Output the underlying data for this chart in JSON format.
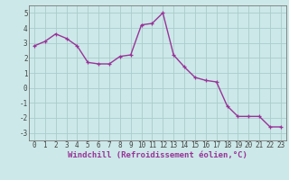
{
  "x": [
    0,
    1,
    2,
    3,
    4,
    5,
    6,
    7,
    8,
    9,
    10,
    11,
    12,
    13,
    14,
    15,
    16,
    17,
    18,
    19,
    20,
    21,
    22,
    23
  ],
  "y": [
    2.8,
    3.1,
    3.6,
    3.3,
    2.8,
    1.7,
    1.6,
    1.6,
    2.1,
    2.2,
    4.2,
    4.3,
    5.0,
    2.2,
    1.4,
    0.7,
    0.5,
    0.4,
    -1.2,
    -1.9,
    -1.9,
    -1.9,
    -2.6,
    -2.6
  ],
  "line_color": "#993399",
  "marker": "+",
  "marker_size": 3,
  "bg_color": "#cce8e8",
  "grid_color": "#aacccc",
  "xlabel": "Windchill (Refroidissement éolien,°C)",
  "xlabel_fontsize": 6.5,
  "yticks": [
    -3,
    -2,
    -1,
    0,
    1,
    2,
    3,
    4,
    5
  ],
  "xticks": [
    0,
    1,
    2,
    3,
    4,
    5,
    6,
    7,
    8,
    9,
    10,
    11,
    12,
    13,
    14,
    15,
    16,
    17,
    18,
    19,
    20,
    21,
    22,
    23
  ],
  "ylim": [
    -3.5,
    5.5
  ],
  "xlim": [
    -0.5,
    23.5
  ],
  "tick_fontsize": 5.5,
  "line_width": 1.0,
  "markeredgewidth": 0.9
}
